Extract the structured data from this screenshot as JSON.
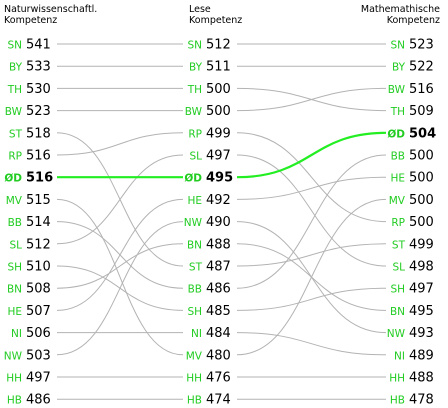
{
  "chart_data": {
    "type": "slope",
    "columns": [
      {
        "title": "Naturwissenschaftl.\nKompetenz",
        "rows": [
          {
            "code": "SN",
            "value": 541
          },
          {
            "code": "BY",
            "value": 533
          },
          {
            "code": "TH",
            "value": 530
          },
          {
            "code": "BW",
            "value": 523
          },
          {
            "code": "ST",
            "value": 518
          },
          {
            "code": "RP",
            "value": 516
          },
          {
            "code": "ØD",
            "value": 516
          },
          {
            "code": "MV",
            "value": 515
          },
          {
            "code": "BB",
            "value": 514
          },
          {
            "code": "SL",
            "value": 512
          },
          {
            "code": "SH",
            "value": 510
          },
          {
            "code": "BN",
            "value": 508
          },
          {
            "code": "HE",
            "value": 507
          },
          {
            "code": "NI",
            "value": 506
          },
          {
            "code": "NW",
            "value": 503
          },
          {
            "code": "HH",
            "value": 497
          },
          {
            "code": "HB",
            "value": 486
          }
        ]
      },
      {
        "title": "Lese\nKompetenz",
        "rows": [
          {
            "code": "SN",
            "value": 512
          },
          {
            "code": "BY",
            "value": 511
          },
          {
            "code": "TH",
            "value": 500
          },
          {
            "code": "BW",
            "value": 500
          },
          {
            "code": "RP",
            "value": 499
          },
          {
            "code": "SL",
            "value": 497
          },
          {
            "code": "ØD",
            "value": 495
          },
          {
            "code": "HE",
            "value": 492
          },
          {
            "code": "NW",
            "value": 490
          },
          {
            "code": "BN",
            "value": 488
          },
          {
            "code": "ST",
            "value": 487
          },
          {
            "code": "BB",
            "value": 486
          },
          {
            "code": "SH",
            "value": 485
          },
          {
            "code": "NI",
            "value": 484
          },
          {
            "code": "MV",
            "value": 480
          },
          {
            "code": "HH",
            "value": 476
          },
          {
            "code": "HB",
            "value": 474
          }
        ]
      },
      {
        "title": "Mathemathische\nKompetenz",
        "rows": [
          {
            "code": "SN",
            "value": 523
          },
          {
            "code": "BY",
            "value": 522
          },
          {
            "code": "BW",
            "value": 516
          },
          {
            "code": "TH",
            "value": 509
          },
          {
            "code": "ØD",
            "value": 504
          },
          {
            "code": "BB",
            "value": 500
          },
          {
            "code": "HE",
            "value": 500
          },
          {
            "code": "MV",
            "value": 500
          },
          {
            "code": "RP",
            "value": 500
          },
          {
            "code": "ST",
            "value": 499
          },
          {
            "code": "SL",
            "value": 498
          },
          {
            "code": "SH",
            "value": 497
          },
          {
            "code": "BN",
            "value": 495
          },
          {
            "code": "NW",
            "value": 493
          },
          {
            "code": "NI",
            "value": 489
          },
          {
            "code": "HH",
            "value": 488
          },
          {
            "code": "HB",
            "value": 478
          }
        ]
      }
    ],
    "highlight": "ØD",
    "colors": {
      "code_text": "#22cc22",
      "value_text": "#000000",
      "line": "#b3b3b3",
      "highlight": "#22ee22"
    }
  }
}
